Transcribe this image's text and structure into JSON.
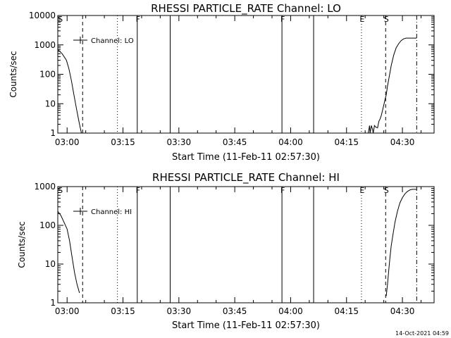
{
  "footer": {
    "timestamp": "14-Oct-2021 04:59"
  },
  "chart_data": [
    {
      "type": "line",
      "title": "RHESSI PARTICLE_RATE Channel: LO",
      "xlabel": "Start Time (11-Feb-11 02:57:30)",
      "ylabel": "Counts/sec",
      "y_scale": "log",
      "ylim": [
        1,
        10000
      ],
      "xlim": [
        "02:57:30",
        "04:38:30"
      ],
      "y_ticks": [
        {
          "v": 1,
          "label": "1"
        },
        {
          "v": 10,
          "label": "10"
        },
        {
          "v": 100,
          "label": "100"
        },
        {
          "v": 1000,
          "label": "1000"
        },
        {
          "v": 10000,
          "label": "10000"
        }
      ],
      "x_ticks": [
        {
          "v": "03:00",
          "label": "03:00"
        },
        {
          "v": "03:15",
          "label": "03:15"
        },
        {
          "v": "03:30",
          "label": "03:30"
        },
        {
          "v": "03:45",
          "label": "03:45"
        },
        {
          "v": "04:00",
          "label": "04:00"
        },
        {
          "v": "04:15",
          "label": "04:15"
        },
        {
          "v": "04:30",
          "label": "04:30"
        }
      ],
      "legend": {
        "placement": "top-left",
        "entries": [
          "Channel: LO"
        ]
      },
      "markers": [
        {
          "t": "02:58:00",
          "style": "none",
          "label": "S"
        },
        {
          "t": "03:04:10",
          "style": "dashed",
          "label": ""
        },
        {
          "t": "03:13:30",
          "style": "dotted",
          "label": ""
        },
        {
          "t": "03:18:50",
          "style": "solid",
          "label": "F"
        },
        {
          "t": "03:27:40",
          "style": "solid",
          "label": ""
        },
        {
          "t": "03:57:40",
          "style": "solid",
          "label": "F"
        },
        {
          "t": "04:06:10",
          "style": "solid",
          "label": ""
        },
        {
          "t": "04:19:00",
          "style": "dotted",
          "label": "E"
        },
        {
          "t": "04:25:30",
          "style": "dashed",
          "label": "S"
        },
        {
          "t": "04:33:50",
          "style": "dashdot",
          "label": ""
        }
      ],
      "series": [
        {
          "name": "Channel: LO",
          "segments": [
            {
              "x": [
                "02:57:30",
                "02:58:40",
                "02:59:50",
                "03:00:30",
                "03:01:10",
                "03:01:50",
                "03:02:30",
                "03:03:10",
                "03:03:50"
              ],
              "y": [
                700,
                500,
                300,
                150,
                60,
                20,
                7,
                2.5,
                1
              ]
            },
            {
              "x": [
                "04:20:50",
                "04:21:10",
                "04:21:20",
                "04:21:40",
                "04:22:00",
                "04:22:10",
                "04:22:30",
                "04:22:50",
                "04:23:20",
                "04:23:40",
                "04:24:00",
                "04:24:20",
                "04:24:40",
                "04:25:00",
                "04:25:20",
                "04:25:40",
                "04:26:00",
                "04:26:30",
                "04:27:00",
                "04:27:40",
                "04:28:20",
                "04:29:00",
                "04:29:40",
                "04:30:20",
                "04:31:00",
                "04:31:40",
                "04:32:20",
                "04:33:00",
                "04:33:50"
              ],
              "y": [
                1,
                1.8,
                1,
                1.8,
                1.3,
                1,
                1.8,
                1.6,
                1.5,
                2.5,
                3,
                4,
                6,
                9,
                14,
                20,
                40,
                90,
                200,
                450,
                800,
                1100,
                1400,
                1600,
                1700,
                1700,
                1700,
                1700,
                1700
              ]
            }
          ]
        }
      ]
    },
    {
      "type": "line",
      "title": "RHESSI PARTICLE_RATE Channel: HI",
      "xlabel": "Start Time (11-Feb-11 02:57:30)",
      "ylabel": "Counts/sec",
      "y_scale": "log",
      "ylim": [
        1,
        1000
      ],
      "xlim": [
        "02:57:30",
        "04:38:30"
      ],
      "y_ticks": [
        {
          "v": 1,
          "label": "1"
        },
        {
          "v": 10,
          "label": "10"
        },
        {
          "v": 100,
          "label": "100"
        },
        {
          "v": 1000,
          "label": "1000"
        }
      ],
      "x_ticks": [
        {
          "v": "03:00",
          "label": "03:00"
        },
        {
          "v": "03:15",
          "label": "03:15"
        },
        {
          "v": "03:30",
          "label": "03:30"
        },
        {
          "v": "03:45",
          "label": "03:45"
        },
        {
          "v": "04:00",
          "label": "04:00"
        },
        {
          "v": "04:15",
          "label": "04:15"
        },
        {
          "v": "04:30",
          "label": "04:30"
        }
      ],
      "legend": {
        "placement": "top-left",
        "entries": [
          "Channel: HI"
        ]
      },
      "markers": [
        {
          "t": "02:58:00",
          "style": "none",
          "label": "S"
        },
        {
          "t": "03:04:10",
          "style": "dashed",
          "label": ""
        },
        {
          "t": "03:13:30",
          "style": "dotted",
          "label": ""
        },
        {
          "t": "03:18:50",
          "style": "solid",
          "label": "F"
        },
        {
          "t": "03:27:40",
          "style": "solid",
          "label": ""
        },
        {
          "t": "03:57:40",
          "style": "solid",
          "label": "F"
        },
        {
          "t": "04:06:10",
          "style": "solid",
          "label": ""
        },
        {
          "t": "04:19:00",
          "style": "dotted",
          "label": "E"
        },
        {
          "t": "04:25:30",
          "style": "dashed",
          "label": "S"
        },
        {
          "t": "04:33:50",
          "style": "dashdot",
          "label": ""
        }
      ],
      "series": [
        {
          "name": "Channel: HI",
          "segments": [
            {
              "x": [
                "02:57:30",
                "02:58:20",
                "02:59:10",
                "03:00:00",
                "03:00:40",
                "03:01:20",
                "03:02:00",
                "03:02:40",
                "03:03:20"
              ],
              "y": [
                230,
                180,
                120,
                80,
                40,
                15,
                6,
                3,
                1.8
              ]
            },
            {
              "x": [
                "04:25:40",
                "04:26:00",
                "04:26:20",
                "04:26:40",
                "04:27:00",
                "04:27:30",
                "04:28:00",
                "04:28:40",
                "04:29:20",
                "04:30:00",
                "04:30:40",
                "04:31:20",
                "04:32:00",
                "04:32:40",
                "04:33:20",
                "04:33:50"
              ],
              "y": [
                1.5,
                3,
                7,
                15,
                30,
                60,
                120,
                230,
                380,
                520,
                650,
                750,
                820,
                850,
                850,
                850
              ]
            }
          ]
        }
      ]
    }
  ]
}
